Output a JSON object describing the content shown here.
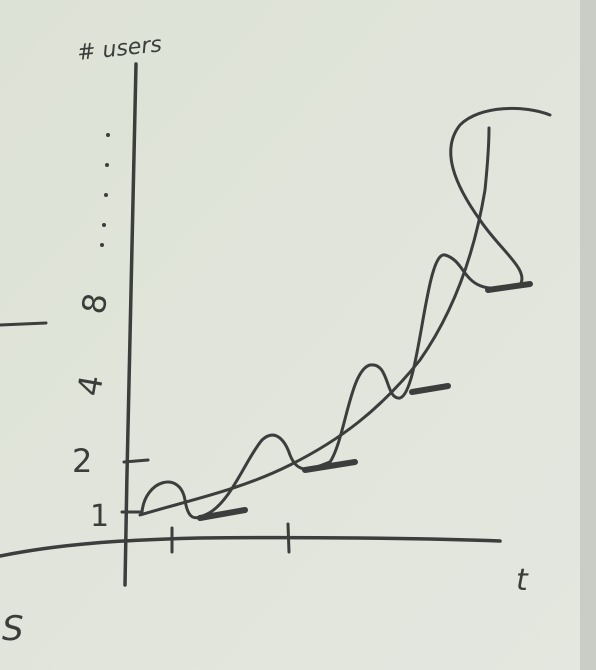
{
  "axis_labels": {
    "y": "# users",
    "x": "t"
  },
  "y_labels": [
    "1",
    "2",
    "4",
    "8"
  ],
  "corner_text": "S"
}
